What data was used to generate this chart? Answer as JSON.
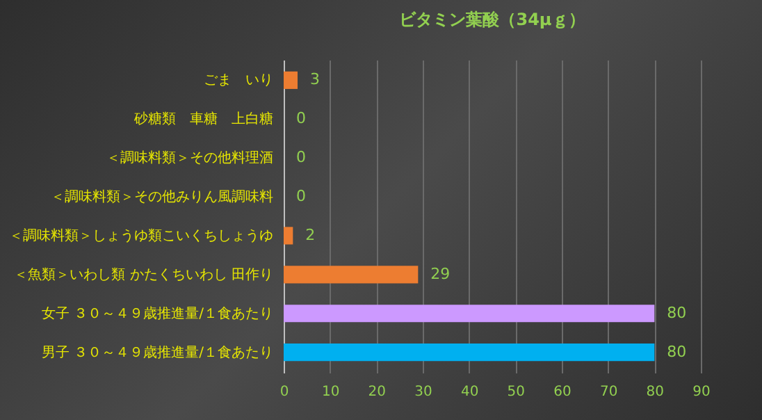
{
  "chart_data": {
    "type": "bar",
    "orientation": "horizontal",
    "title": "ビタミン葉酸（34μｇ）",
    "categories": [
      "ごま　いり",
      "砂糖類　車糖　上白糖",
      "＜調味料類＞その他料理酒",
      "＜調味料類＞その他みりん風調味料",
      "＜調味料類＞しょうゆ類こいくちしょうゆ",
      "＜魚類＞いわし類 かたくちいわし 田作り",
      "女子 ３０～４９歳推進量/１食あたり",
      "男子 ３０～４９歳推進量/１食あたり"
    ],
    "values": [
      3,
      0,
      0,
      0,
      2,
      29,
      80,
      80
    ],
    "colors": [
      "#ed7d31",
      "#ed7d31",
      "#ed7d31",
      "#ed7d31",
      "#ed7d31",
      "#ed7d31",
      "#cc99ff",
      "#00b0f0"
    ],
    "xlim": [
      0,
      90
    ],
    "xticks": [
      0,
      10,
      20,
      30,
      40,
      50,
      60,
      70,
      80,
      90
    ],
    "grid": "x",
    "data_labels": true
  }
}
